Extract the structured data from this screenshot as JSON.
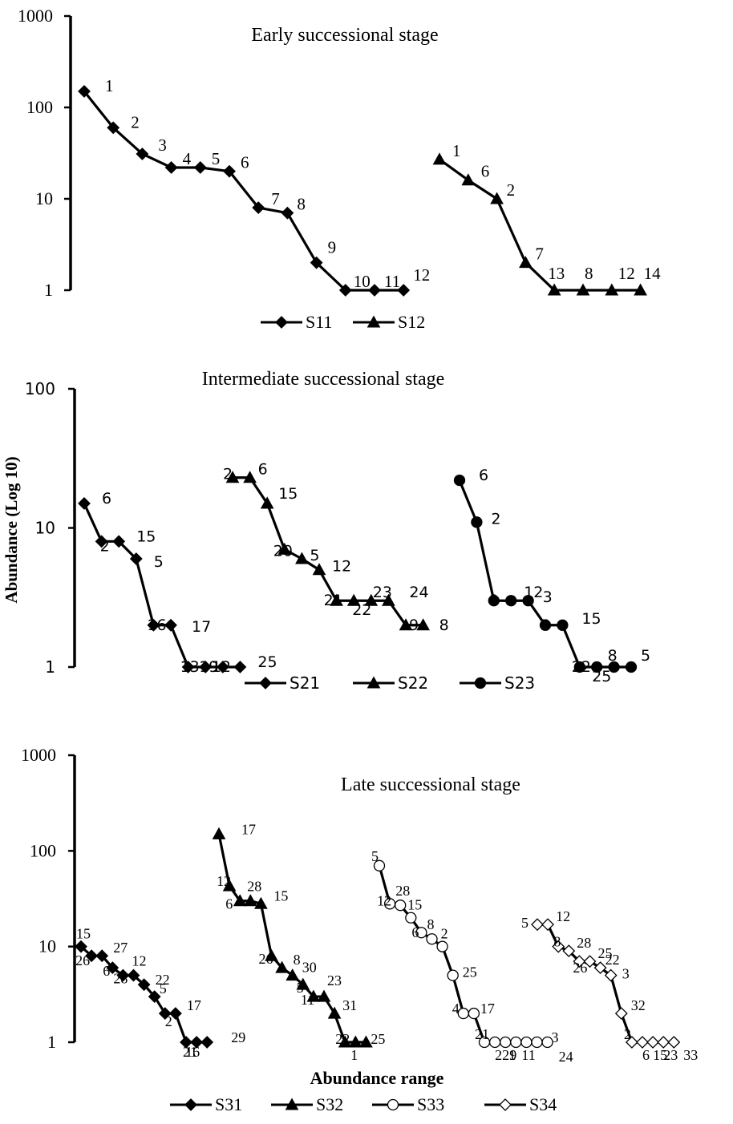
{
  "y_axis_label": "Abundance (Log 10)",
  "x_axis_label": "Abundance range",
  "chart_data": [
    {
      "type": "line",
      "title": "Early successional stage",
      "yscale": "log",
      "ylim": [
        1,
        1000
      ],
      "yticks": [
        "1",
        "10",
        "100",
        "1000"
      ],
      "legend_position": "bottom-center",
      "series": [
        {
          "name": "S11",
          "marker": "filled-diamond",
          "species": [
            "1",
            "2",
            "3",
            "4",
            "5",
            "6",
            "7",
            "8",
            "9",
            "10",
            "11",
            "12"
          ],
          "values": [
            150,
            60,
            31,
            22,
            22,
            20,
            8,
            7,
            2,
            1,
            1,
            1
          ]
        },
        {
          "name": "S12",
          "marker": "filled-triangle",
          "species": [
            "1",
            "6",
            "2",
            "7",
            "13",
            "8",
            "12",
            "14"
          ],
          "values": [
            27,
            16,
            10,
            2,
            1,
            1,
            1,
            1
          ]
        }
      ]
    },
    {
      "type": "line",
      "title": "Intermediate successional stage",
      "yscale": "log",
      "ylim": [
        1,
        100
      ],
      "yticks": [
        "1",
        "10",
        "100"
      ],
      "legend_position": "bottom-center",
      "series": [
        {
          "name": "S21",
          "marker": "filled-diamond",
          "species": [
            "6",
            "2",
            "15",
            "5",
            "16",
            "17",
            "13",
            "19",
            "12",
            "25"
          ],
          "values": [
            15,
            8,
            8,
            6,
            2,
            2,
            1,
            1,
            1,
            1
          ]
        },
        {
          "name": "S22",
          "marker": "filled-triangle",
          "species": [
            "2",
            "6",
            "15",
            "20",
            "5",
            "12",
            "21",
            "22",
            "23",
            "24",
            "9",
            "8"
          ],
          "values": [
            23,
            23,
            15,
            7,
            6,
            5,
            3,
            3,
            3,
            3,
            2,
            2
          ]
        },
        {
          "name": "S23",
          "marker": "filled-circle",
          "species": [
            "6",
            "2",
            "9",
            "12",
            "3",
            "7",
            "15",
            "22",
            "25",
            "8",
            "5"
          ],
          "values": [
            22,
            11,
            3,
            3,
            3,
            2,
            2,
            1,
            1,
            1,
            1
          ]
        }
      ]
    },
    {
      "type": "line",
      "title": "Late successional stage",
      "yscale": "log",
      "ylim": [
        1,
        1000
      ],
      "yticks": [
        "1",
        "10",
        "100",
        "1000"
      ],
      "legend_position": "bottom-center",
      "series": [
        {
          "name": "S31",
          "marker": "filled-diamond",
          "species": [
            "15",
            "26",
            "27",
            "6",
            "28",
            "12",
            "22",
            "5",
            "2",
            "17",
            "21",
            "16",
            "29"
          ],
          "values": [
            10,
            8,
            8,
            6,
            5,
            5,
            4,
            3,
            2,
            2,
            1,
            1,
            1
          ]
        },
        {
          "name": "S32",
          "marker": "filled-triangle",
          "species": [
            "17",
            "12",
            "6",
            "28",
            "15",
            "26",
            "8",
            "30",
            "5",
            "11",
            "23",
            "31",
            "22",
            "1",
            "25"
          ],
          "values": [
            150,
            43,
            30,
            30,
            28,
            8,
            6,
            5,
            4,
            3,
            3,
            2,
            1,
            1,
            1
          ]
        },
        {
          "name": "S33",
          "marker": "open-circle",
          "species": [
            "5",
            "12",
            "28",
            "15",
            "6",
            "8",
            "2",
            "25",
            "4",
            "17",
            "21",
            "22",
            "1",
            "9",
            "11",
            "3",
            "24"
          ],
          "values": [
            70,
            28,
            27,
            20,
            14,
            12,
            10,
            5,
            2,
            2,
            1,
            1,
            1,
            1,
            1,
            1,
            1
          ]
        },
        {
          "name": "S34",
          "marker": "open-diamond",
          "species": [
            "5",
            "12",
            "8",
            "28",
            "26",
            "25",
            "22",
            "3",
            "32",
            "2",
            "6",
            "15",
            "23",
            "33"
          ],
          "values": [
            17,
            17,
            10,
            9,
            7,
            7,
            6,
            5,
            2,
            1,
            1,
            1,
            1,
            1
          ]
        }
      ]
    }
  ]
}
